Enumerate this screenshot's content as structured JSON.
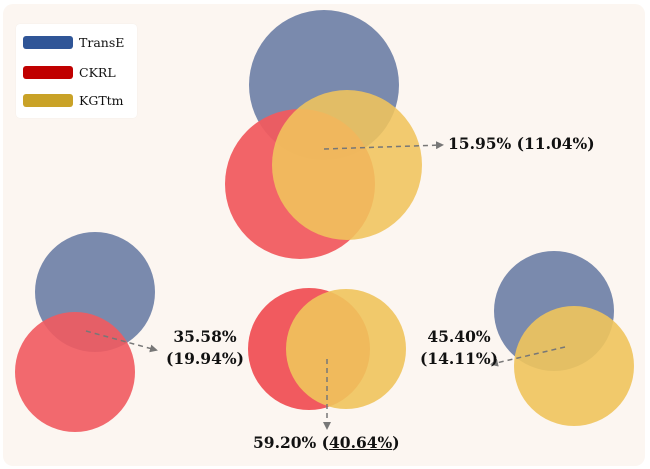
{
  "legend": {
    "items": [
      {
        "label": "TransE",
        "color": "#2f5597"
      },
      {
        "label": "CKRL",
        "color": "#c00000"
      },
      {
        "label": "KGTtm",
        "color": "#c9a227"
      }
    ]
  },
  "colors": {
    "transe_fill": "#7a8aad",
    "ckrl_fill": "#f15a5f",
    "kgttm_fill": "#f0c45c",
    "overlap_fill": "#f0922c",
    "arrow": "#777777",
    "panel_bg": "#fcf6f1"
  },
  "labels": {
    "top": {
      "main": "15.95%",
      "paren": "(11.04%)"
    },
    "left": {
      "main": "35.58%",
      "paren": "(19.94%)"
    },
    "middle": {
      "main": "59.20%",
      "paren_open": "(",
      "paren_value": "40.64%",
      "paren_close": ")"
    },
    "right": {
      "main": "45.40%",
      "paren": "(14.11%)"
    }
  }
}
